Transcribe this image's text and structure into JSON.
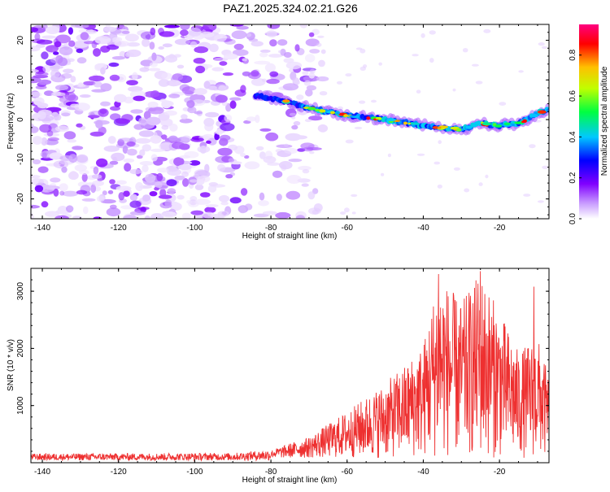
{
  "title": "PAZ1.2025.324.02.21.G26",
  "chart_data": [
    {
      "type": "heatmap",
      "name": "spectrogram",
      "xlabel": "Height of straight line (km)",
      "ylabel": "Frequency (Hz)",
      "xlim": [
        -143,
        -7
      ],
      "ylim": [
        -25,
        24
      ],
      "xticks": [
        -140,
        -120,
        -100,
        -80,
        -60,
        -40,
        -20
      ],
      "yticks": [
        -20,
        -10,
        0,
        10,
        20
      ],
      "noise_region_x": [
        -143,
        -78
      ],
      "signal_ridge": {
        "x": [
          -84,
          -78,
          -70,
          -60,
          -50,
          -40,
          -30,
          -25,
          -20,
          -15,
          -10,
          -7
        ],
        "y": [
          6,
          5,
          3,
          1,
          0,
          -1.5,
          -2.5,
          -1,
          -1.5,
          -1,
          1.5,
          2.5
        ]
      },
      "colorbar": {
        "label": "Normalized spectral amplitude",
        "range": [
          0.0,
          0.95
        ],
        "ticks": [
          "0.0",
          "0.2",
          "0.4",
          "0.6",
          "0.8"
        ],
        "tick_values": [
          0.0,
          0.2,
          0.4,
          0.6,
          0.8
        ],
        "colormap": [
          "#ffffff",
          "#c89bff",
          "#8000ff",
          "#0000ff",
          "#00c8ff",
          "#00ff40",
          "#c0ff00",
          "#ffc000",
          "#ff0000",
          "#ff0080"
        ]
      }
    },
    {
      "type": "line",
      "name": "snr",
      "xlabel": "Height of straight line (km)",
      "ylabel": "SNR (10 * v/v)",
      "xlim": [
        -143,
        -7
      ],
      "ylim": [
        0,
        3400
      ],
      "xticks": [
        -140,
        -120,
        -100,
        -80,
        -60,
        -40,
        -20
      ],
      "yticks": [
        1000,
        2000,
        3000
      ],
      "series": [
        {
          "name": "SNR",
          "color": "#ee3030",
          "envelope": {
            "x": [
              -143,
              -90,
              -80,
              -70,
              -60,
              -50,
              -45,
              -40,
              -36,
              -30,
              -25,
              -20,
              -15,
              -10,
              -7
            ],
            "y": [
              150,
              160,
              220,
              450,
              900,
              1400,
              1700,
              2100,
              3300,
              2800,
              3350,
              2650,
              1950,
              2200,
              1500
            ]
          },
          "peaks": [
            {
              "x": -36,
              "y": 3300
            },
            {
              "x": -25,
              "y": 3350
            },
            {
              "x": -11,
              "y": 3080
            }
          ]
        }
      ]
    }
  ]
}
